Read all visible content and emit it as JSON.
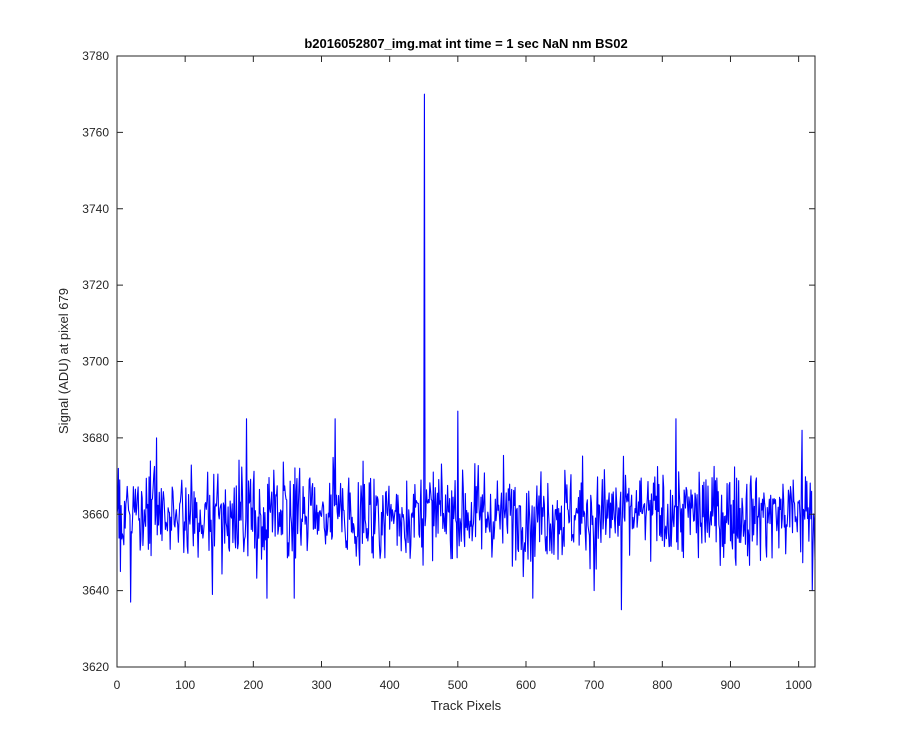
{
  "chart_data": {
    "type": "line",
    "title": "b2016052807_img.mat int time = 1 sec  NaN nm BS02",
    "xlabel": "Track Pixels",
    "ylabel": "Signal (ADU) at pixel 679",
    "xlim": [
      0,
      1024
    ],
    "ylim": [
      3620,
      3780
    ],
    "xticks": [
      0,
      100,
      200,
      300,
      400,
      500,
      600,
      700,
      800,
      900,
      1000
    ],
    "yticks": [
      3620,
      3640,
      3660,
      3680,
      3700,
      3720,
      3740,
      3760,
      3780
    ],
    "grid": false,
    "legend": "none",
    "series": [
      {
        "color": "#0000ff",
        "mean": 3660,
        "noise_amplitude": 6,
        "num_points": 1024,
        "spike": {
          "x": 451,
          "y": 3770
        },
        "notable_points": [
          {
            "x": 0,
            "y": 3660
          },
          {
            "x": 2,
            "y": 3672
          },
          {
            "x": 5,
            "y": 3645
          },
          {
            "x": 10,
            "y": 3652
          },
          {
            "x": 20,
            "y": 3637
          },
          {
            "x": 58,
            "y": 3680
          },
          {
            "x": 140,
            "y": 3639
          },
          {
            "x": 190,
            "y": 3685
          },
          {
            "x": 220,
            "y": 3638
          },
          {
            "x": 260,
            "y": 3638
          },
          {
            "x": 320,
            "y": 3685
          },
          {
            "x": 451,
            "y": 3770
          },
          {
            "x": 500,
            "y": 3687
          },
          {
            "x": 610,
            "y": 3638
          },
          {
            "x": 700,
            "y": 3640
          },
          {
            "x": 740,
            "y": 3635
          },
          {
            "x": 820,
            "y": 3685
          },
          {
            "x": 1005,
            "y": 3682
          },
          {
            "x": 1020,
            "y": 3640
          },
          {
            "x": 1024,
            "y": 3648
          }
        ]
      }
    ]
  }
}
